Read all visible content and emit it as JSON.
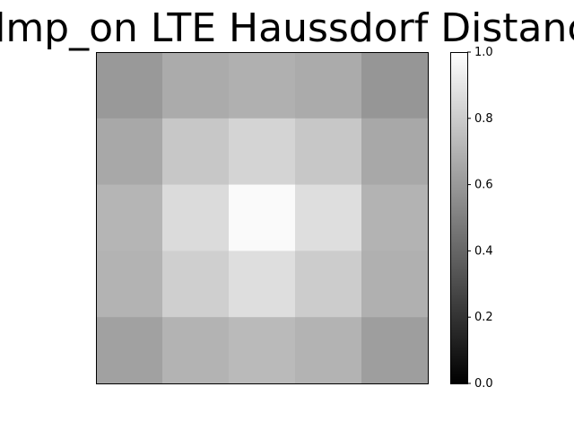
{
  "chart_data": {
    "type": "heatmap",
    "title": "_dmp_on LTE Haussdorf Distance",
    "xlabel": "",
    "ylabel": "",
    "colormap": "gray",
    "value_range": [
      0.0,
      1.0
    ],
    "rows": 5,
    "cols": 5,
    "values": [
      [
        0.6,
        0.67,
        0.69,
        0.67,
        0.59
      ],
      [
        0.66,
        0.78,
        0.83,
        0.78,
        0.66
      ],
      [
        0.71,
        0.86,
        0.98,
        0.87,
        0.7
      ],
      [
        0.7,
        0.81,
        0.87,
        0.8,
        0.69
      ],
      [
        0.63,
        0.7,
        0.73,
        0.7,
        0.62
      ]
    ],
    "colorbar": {
      "ticks": [
        0.0,
        0.2,
        0.4,
        0.6,
        0.8,
        1.0
      ],
      "tick_labels": [
        "0.0",
        "0.2",
        "0.4",
        "0.6",
        "0.8",
        "1.0"
      ]
    }
  }
}
